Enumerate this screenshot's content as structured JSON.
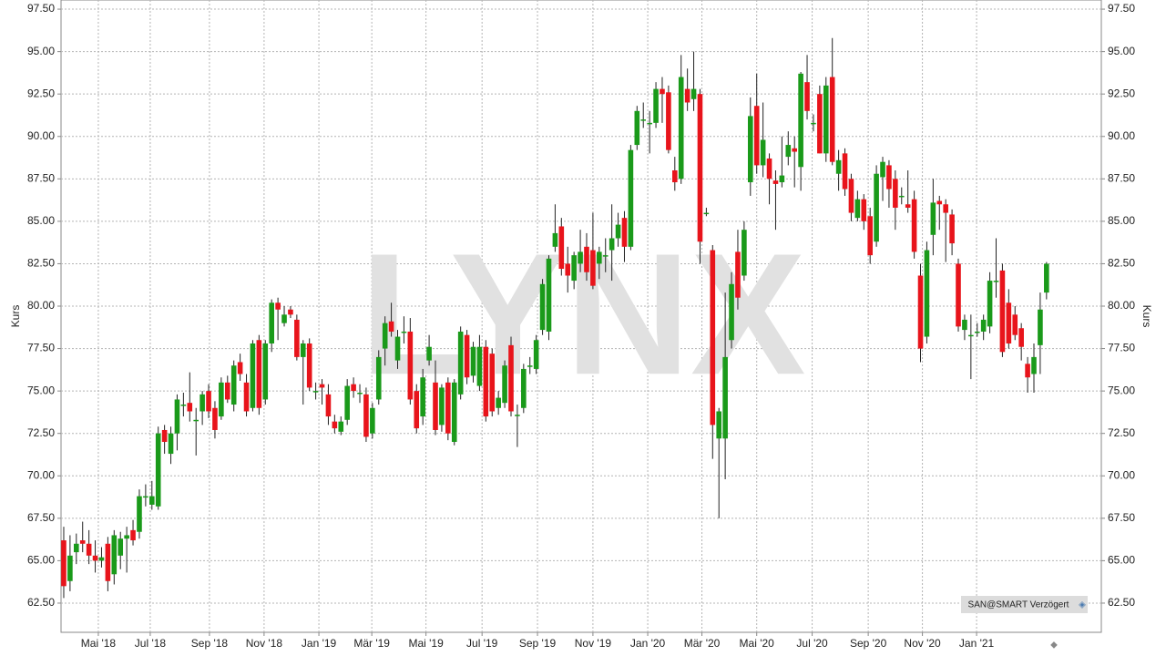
{
  "chart_data": {
    "type": "candlestick",
    "y_label": "Kurs",
    "watermark": "LYNX",
    "source": "SAN@SMART Verzögert",
    "up_color": "#1a9a1a",
    "down_color": "#e8141b",
    "grid": true,
    "ylim": [
      60.78,
      98.04
    ],
    "xlim": [
      -0.43,
      164.7
    ],
    "yticks": [
      {
        "value": 62.5,
        "label": "62.50"
      },
      {
        "value": 65,
        "label": "65.00"
      },
      {
        "value": 67.5,
        "label": "67.50"
      },
      {
        "value": 70,
        "label": "70.00"
      },
      {
        "value": 72.5,
        "label": "72.50"
      },
      {
        "value": 75,
        "label": "75.00"
      },
      {
        "value": 77.5,
        "label": "77.50"
      },
      {
        "value": 80,
        "label": "80.00"
      },
      {
        "value": 82.5,
        "label": "82.50"
      },
      {
        "value": 85,
        "label": "85.00"
      },
      {
        "value": 87.5,
        "label": "87.50"
      },
      {
        "value": 90,
        "label": "90.00"
      },
      {
        "value": 92.5,
        "label": "92.50"
      },
      {
        "value": 95,
        "label": "95.00"
      },
      {
        "value": 97.5,
        "label": "97.50"
      }
    ],
    "xticks": [
      {
        "value": 5.49,
        "label": "Mai '18"
      },
      {
        "value": 13.73,
        "label": "Jul '18"
      },
      {
        "value": 23.13,
        "label": "Sep '18"
      },
      {
        "value": 31.8,
        "label": "Nov '18"
      },
      {
        "value": 40.5,
        "label": "Jan '19"
      },
      {
        "value": 48.9,
        "label": "Mär '19"
      },
      {
        "value": 57.5,
        "label": "Mai '19"
      },
      {
        "value": 66.4,
        "label": "Jul '19"
      },
      {
        "value": 75.2,
        "label": "Sep '19"
      },
      {
        "value": 84.0,
        "label": "Nov '19"
      },
      {
        "value": 92.7,
        "label": "Jan '20"
      },
      {
        "value": 101.3,
        "label": "Mär '20"
      },
      {
        "value": 110.0,
        "label": "Mai '20"
      },
      {
        "value": 118.8,
        "label": "Jul '20"
      },
      {
        "value": 127.7,
        "label": "Sep '20"
      },
      {
        "value": 136.3,
        "label": "Nov '20"
      },
      {
        "value": 144.9,
        "label": "Jan '21"
      }
    ],
    "open": [
      66.2,
      63.8,
      65.5,
      66.2,
      66.0,
      65.3,
      65.0,
      66.0,
      64.2,
      65.3,
      66.3,
      66.8,
      66.7,
      68.8,
      68.3,
      68.2,
      72.7,
      71.3,
      72.5,
      74.2,
      74.3,
      73.3,
      73.8,
      75.0,
      74.0,
      73.5,
      75.5,
      74.2,
      76.7,
      75.5,
      74.0,
      78.0,
      74.5,
      77.8,
      80.2,
      79.0,
      79.8,
      79.2,
      77.0,
      77.8,
      75.0,
      75.4,
      74.8,
      73.2,
      72.6,
      73.3,
      75.4,
      74.9,
      74.8,
      72.5,
      74.5,
      77.5,
      79.1,
      76.8,
      78.5,
      78.5,
      75.0,
      73.5,
      76.8,
      75.5,
      73.0,
      75.5,
      72.0,
      74.8,
      78.3,
      75.9,
      75.3,
      77.6,
      77.2,
      74.0,
      74.3,
      77.7,
      73.6,
      74.0,
      76.5,
      76.3,
      78.6,
      78.5,
      83.5,
      84.7,
      82.5,
      81.5,
      82.5,
      83.5,
      83.3,
      82.5,
      83.0,
      83.3,
      84.0,
      85.2,
      83.5,
      89.5,
      91.0,
      90.8,
      90.8,
      92.8,
      92.6,
      88.0,
      87.5,
      92.8,
      92.2,
      92.5,
      85.5,
      83.3,
      72.2,
      72.2,
      78.0,
      83.2,
      81.8,
      87.3,
      91.8,
      88.3,
      88.7,
      87.4,
      87.3,
      88.8,
      89.3,
      88.2,
      93.2,
      90.8,
      92.5,
      89.0,
      93.5,
      87.8,
      89.0,
      87.5,
      85.2,
      86.3,
      85.3,
      83.8,
      87.6,
      88.3,
      87.5,
      86.5,
      86.0,
      86.3,
      81.8,
      78.2,
      84.2,
      86.2,
      86.0,
      85.4,
      82.5,
      78.6,
      78.3,
      78.5,
      78.5,
      78.8,
      81.5,
      82.1,
      80.2,
      79.5,
      78.7,
      76.6,
      76.0,
      77.7,
      80.8
    ],
    "high": [
      67.0,
      66.5,
      66.6,
      67.3,
      66.8,
      66.2,
      65.8,
      66.4,
      66.8,
      66.7,
      67.0,
      67.4,
      69.2,
      69.5,
      69.7,
      72.9,
      73.0,
      72.9,
      74.8,
      74.9,
      76.1,
      74.0,
      75.0,
      75.4,
      74.4,
      75.8,
      75.9,
      76.8,
      77.2,
      76.0,
      78.0,
      78.3,
      78.0,
      80.4,
      80.5,
      80.0,
      80.0,
      79.5,
      78.0,
      78.1,
      75.5,
      75.7,
      75.4,
      73.6,
      73.5,
      75.7,
      75.8,
      75.4,
      75.2,
      74.3,
      77.4,
      79.4,
      80.2,
      78.6,
      79.4,
      79.3,
      75.4,
      76.3,
      78.3,
      76.8,
      75.4,
      75.8,
      75.7,
      78.8,
      78.6,
      77.9,
      78.3,
      78.0,
      77.5,
      75.0,
      76.8,
      78.2,
      74.2,
      76.6,
      77.0,
      78.3,
      81.6,
      83.0,
      86.0,
      85.2,
      83.5,
      83.2,
      84.5,
      84.3,
      85.5,
      83.5,
      84.0,
      86.0,
      85.5,
      85.6,
      89.5,
      91.8,
      92.0,
      91.5,
      93.2,
      93.5,
      93.0,
      88.8,
      94.8,
      94.0,
      95.0,
      92.8,
      85.8,
      83.6,
      74.0,
      80.8,
      82.0,
      84.5,
      85.0,
      92.3,
      93.7,
      92.0,
      89.0,
      88.0,
      90.0,
      90.3,
      90.0,
      93.8,
      94.8,
      91.3,
      93.0,
      93.5,
      95.8,
      89.2,
      89.3,
      87.8,
      86.8,
      86.6,
      85.8,
      88.3,
      88.8,
      88.6,
      88.0,
      87.0,
      88.0,
      86.8,
      82.5,
      83.8,
      87.5,
      86.5,
      86.3,
      85.7,
      82.8,
      79.5,
      79.5,
      79.0,
      79.5,
      82.0,
      84.0,
      82.5,
      81.0,
      80.0,
      79.0,
      77.0,
      77.8,
      80.8,
      82.6
    ],
    "low": [
      62.8,
      63.2,
      64.8,
      65.5,
      64.8,
      64.3,
      64.6,
      63.2,
      63.6,
      64.5,
      64.3,
      65.9,
      66.3,
      68.2,
      68.0,
      68.0,
      71.3,
      70.7,
      71.5,
      73.5,
      73.2,
      71.2,
      73.0,
      73.4,
      72.2,
      73.3,
      74.3,
      73.8,
      75.6,
      73.5,
      73.8,
      73.6,
      74.2,
      77.3,
      78.0,
      78.8,
      79.3,
      76.8,
      74.2,
      75.0,
      74.5,
      74.2,
      73.0,
      72.5,
      72.4,
      73.0,
      74.6,
      74.3,
      72.0,
      72.2,
      74.2,
      76.5,
      78.2,
      76.3,
      77.8,
      74.2,
      72.5,
      73.0,
      76.5,
      72.4,
      72.6,
      72.1,
      71.8,
      74.5,
      75.4,
      75.5,
      75.0,
      73.2,
      73.5,
      73.6,
      74.0,
      73.5,
      71.7,
      73.7,
      76.0,
      76.0,
      78.3,
      78.0,
      83.2,
      81.8,
      80.8,
      81.0,
      82.0,
      81.5,
      81.0,
      81.6,
      82.0,
      81.5,
      83.5,
      82.6,
      83.3,
      89.2,
      90.5,
      89.0,
      90.5,
      90.8,
      89.0,
      86.8,
      87.2,
      91.5,
      91.5,
      82.5,
      85.3,
      71.0,
      67.5,
      69.8,
      77.5,
      79.8,
      81.5,
      86.5,
      87.8,
      87.6,
      86.0,
      84.5,
      87.0,
      88.3,
      87.0,
      86.8,
      91.0,
      90.3,
      89.0,
      88.5,
      88.3,
      86.8,
      86.5,
      85.0,
      85.0,
      84.5,
      82.5,
      83.5,
      86.2,
      85.8,
      84.5,
      86.0,
      85.5,
      82.8,
      76.7,
      77.8,
      83.0,
      84.5,
      82.6,
      83.0,
      78.5,
      78.0,
      75.7,
      78.2,
      78.0,
      78.4,
      80.5,
      77.0,
      77.5,
      78.0,
      76.8,
      74.9,
      74.9,
      76.0,
      80.4
    ],
    "close": [
      63.5,
      65.3,
      66.0,
      66.0,
      65.3,
      65.0,
      65.2,
      63.8,
      66.5,
      66.3,
      66.5,
      66.2,
      68.8,
      68.8,
      68.8,
      72.5,
      72.0,
      72.5,
      74.5,
      74.2,
      73.8,
      73.3,
      74.8,
      73.8,
      72.7,
      75.5,
      74.5,
      76.5,
      76.0,
      73.8,
      77.8,
      74.0,
      77.8,
      80.2,
      79.8,
      79.5,
      79.5,
      77.0,
      77.8,
      75.2,
      75.0,
      75.2,
      73.5,
      72.8,
      73.2,
      75.3,
      75.0,
      74.9,
      72.3,
      74.0,
      77.0,
      79.0,
      78.5,
      78.2,
      78.5,
      74.5,
      72.8,
      75.8,
      77.6,
      72.7,
      75.2,
      72.5,
      75.5,
      78.5,
      75.8,
      77.6,
      77.6,
      73.5,
      73.8,
      74.6,
      76.5,
      73.8,
      73.6,
      76.3,
      76.5,
      78.0,
      81.3,
      82.8,
      84.3,
      82.2,
      81.8,
      83.0,
      83.2,
      82.0,
      81.2,
      83.2,
      83.0,
      84.0,
      84.8,
      83.5,
      89.2,
      91.5,
      91.0,
      90.8,
      92.8,
      92.5,
      89.2,
      87.3,
      93.5,
      92.0,
      92.8,
      83.8,
      85.5,
      73.0,
      73.8,
      77.0,
      81.3,
      80.5,
      84.5,
      91.2,
      88.3,
      89.8,
      87.5,
      87.2,
      87.7,
      89.5,
      89.1,
      93.7,
      91.5,
      90.8,
      89.0,
      93.0,
      88.5,
      88.6,
      86.9,
      85.5,
      86.3,
      85.0,
      83.0,
      87.8,
      88.5,
      86.9,
      85.8,
      86.5,
      85.8,
      83.2,
      77.5,
      83.3,
      86.1,
      86.0,
      85.5,
      83.7,
      78.8,
      79.2,
      78.3,
      78.5,
      79.2,
      81.5,
      81.5,
      77.3,
      77.8,
      78.3,
      77.6,
      75.8,
      77.0,
      79.8,
      82.5
    ]
  }
}
